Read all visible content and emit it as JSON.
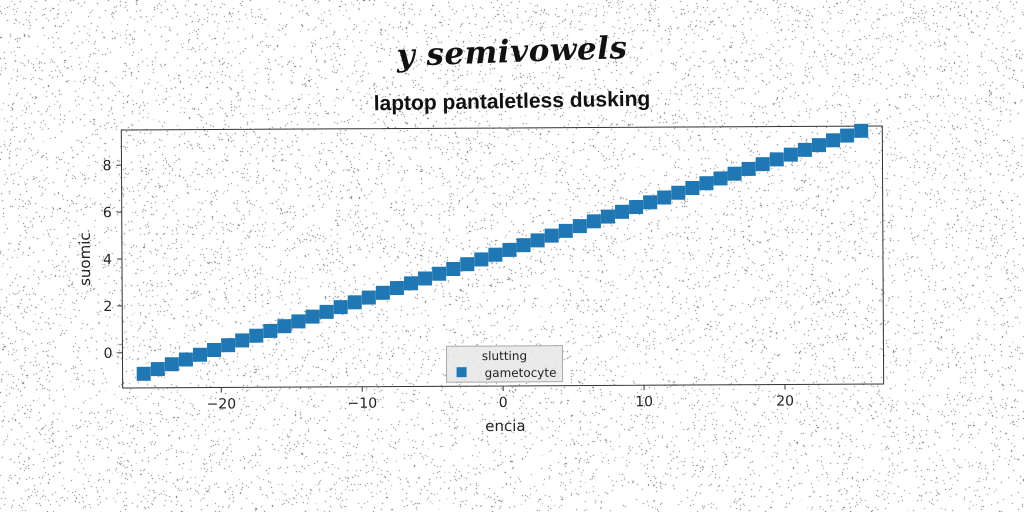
{
  "figure": {
    "suptitle": "y semivowels"
  },
  "chart_data": {
    "type": "scatter",
    "title": "laptop pantaletless dusking",
    "xlabel": "encia",
    "ylabel": "suomic",
    "xlim": [
      -27,
      27
    ],
    "ylim": [
      -1.5,
      9.5
    ],
    "xticks": [
      -20,
      -10,
      0,
      10,
      20
    ],
    "yticks": [
      0,
      2,
      4,
      6,
      8
    ],
    "x_tick_labels": [
      "−20",
      "−10",
      "0",
      "10",
      "20"
    ],
    "y_tick_labels": [
      "0",
      "2",
      "4",
      "6",
      "8"
    ],
    "grid": false,
    "legend": {
      "title": "slutting",
      "position": "lower-center",
      "entries": [
        "gametocyte"
      ]
    },
    "series": [
      {
        "name": "gametocyte",
        "marker": "square",
        "color": "#1f77b4",
        "x": [
          -25.5,
          -24.5,
          -23.5,
          -22.5,
          -21.5,
          -20.5,
          -19.5,
          -18.5,
          -17.5,
          -16.5,
          -15.5,
          -14.5,
          -13.5,
          -12.5,
          -11.5,
          -10.5,
          -9.5,
          -8.5,
          -7.5,
          -6.5,
          -5.5,
          -4.5,
          -3.5,
          -2.5,
          -1.5,
          -0.5,
          0.5,
          1.5,
          2.5,
          3.5,
          4.5,
          5.5,
          6.5,
          7.5,
          8.5,
          9.5,
          10.5,
          11.5,
          12.5,
          13.5,
          14.5,
          15.5,
          16.5,
          17.5,
          18.5,
          19.5,
          20.5,
          21.5,
          22.5,
          23.5,
          24.5,
          25.5
        ],
        "y": [
          -0.9,
          -0.7,
          -0.5,
          -0.3,
          -0.1,
          0.1,
          0.3,
          0.5,
          0.7,
          0.9,
          1.1,
          1.3,
          1.5,
          1.7,
          1.9,
          2.1,
          2.3,
          2.5,
          2.7,
          2.9,
          3.1,
          3.3,
          3.5,
          3.7,
          3.9,
          4.1,
          4.3,
          4.5,
          4.7,
          4.9,
          5.1,
          5.3,
          5.5,
          5.7,
          5.9,
          6.1,
          6.3,
          6.5,
          6.7,
          6.9,
          7.1,
          7.3,
          7.5,
          7.7,
          7.9,
          8.1,
          8.3,
          8.5,
          8.7,
          8.9,
          9.1,
          9.3
        ]
      }
    ]
  }
}
